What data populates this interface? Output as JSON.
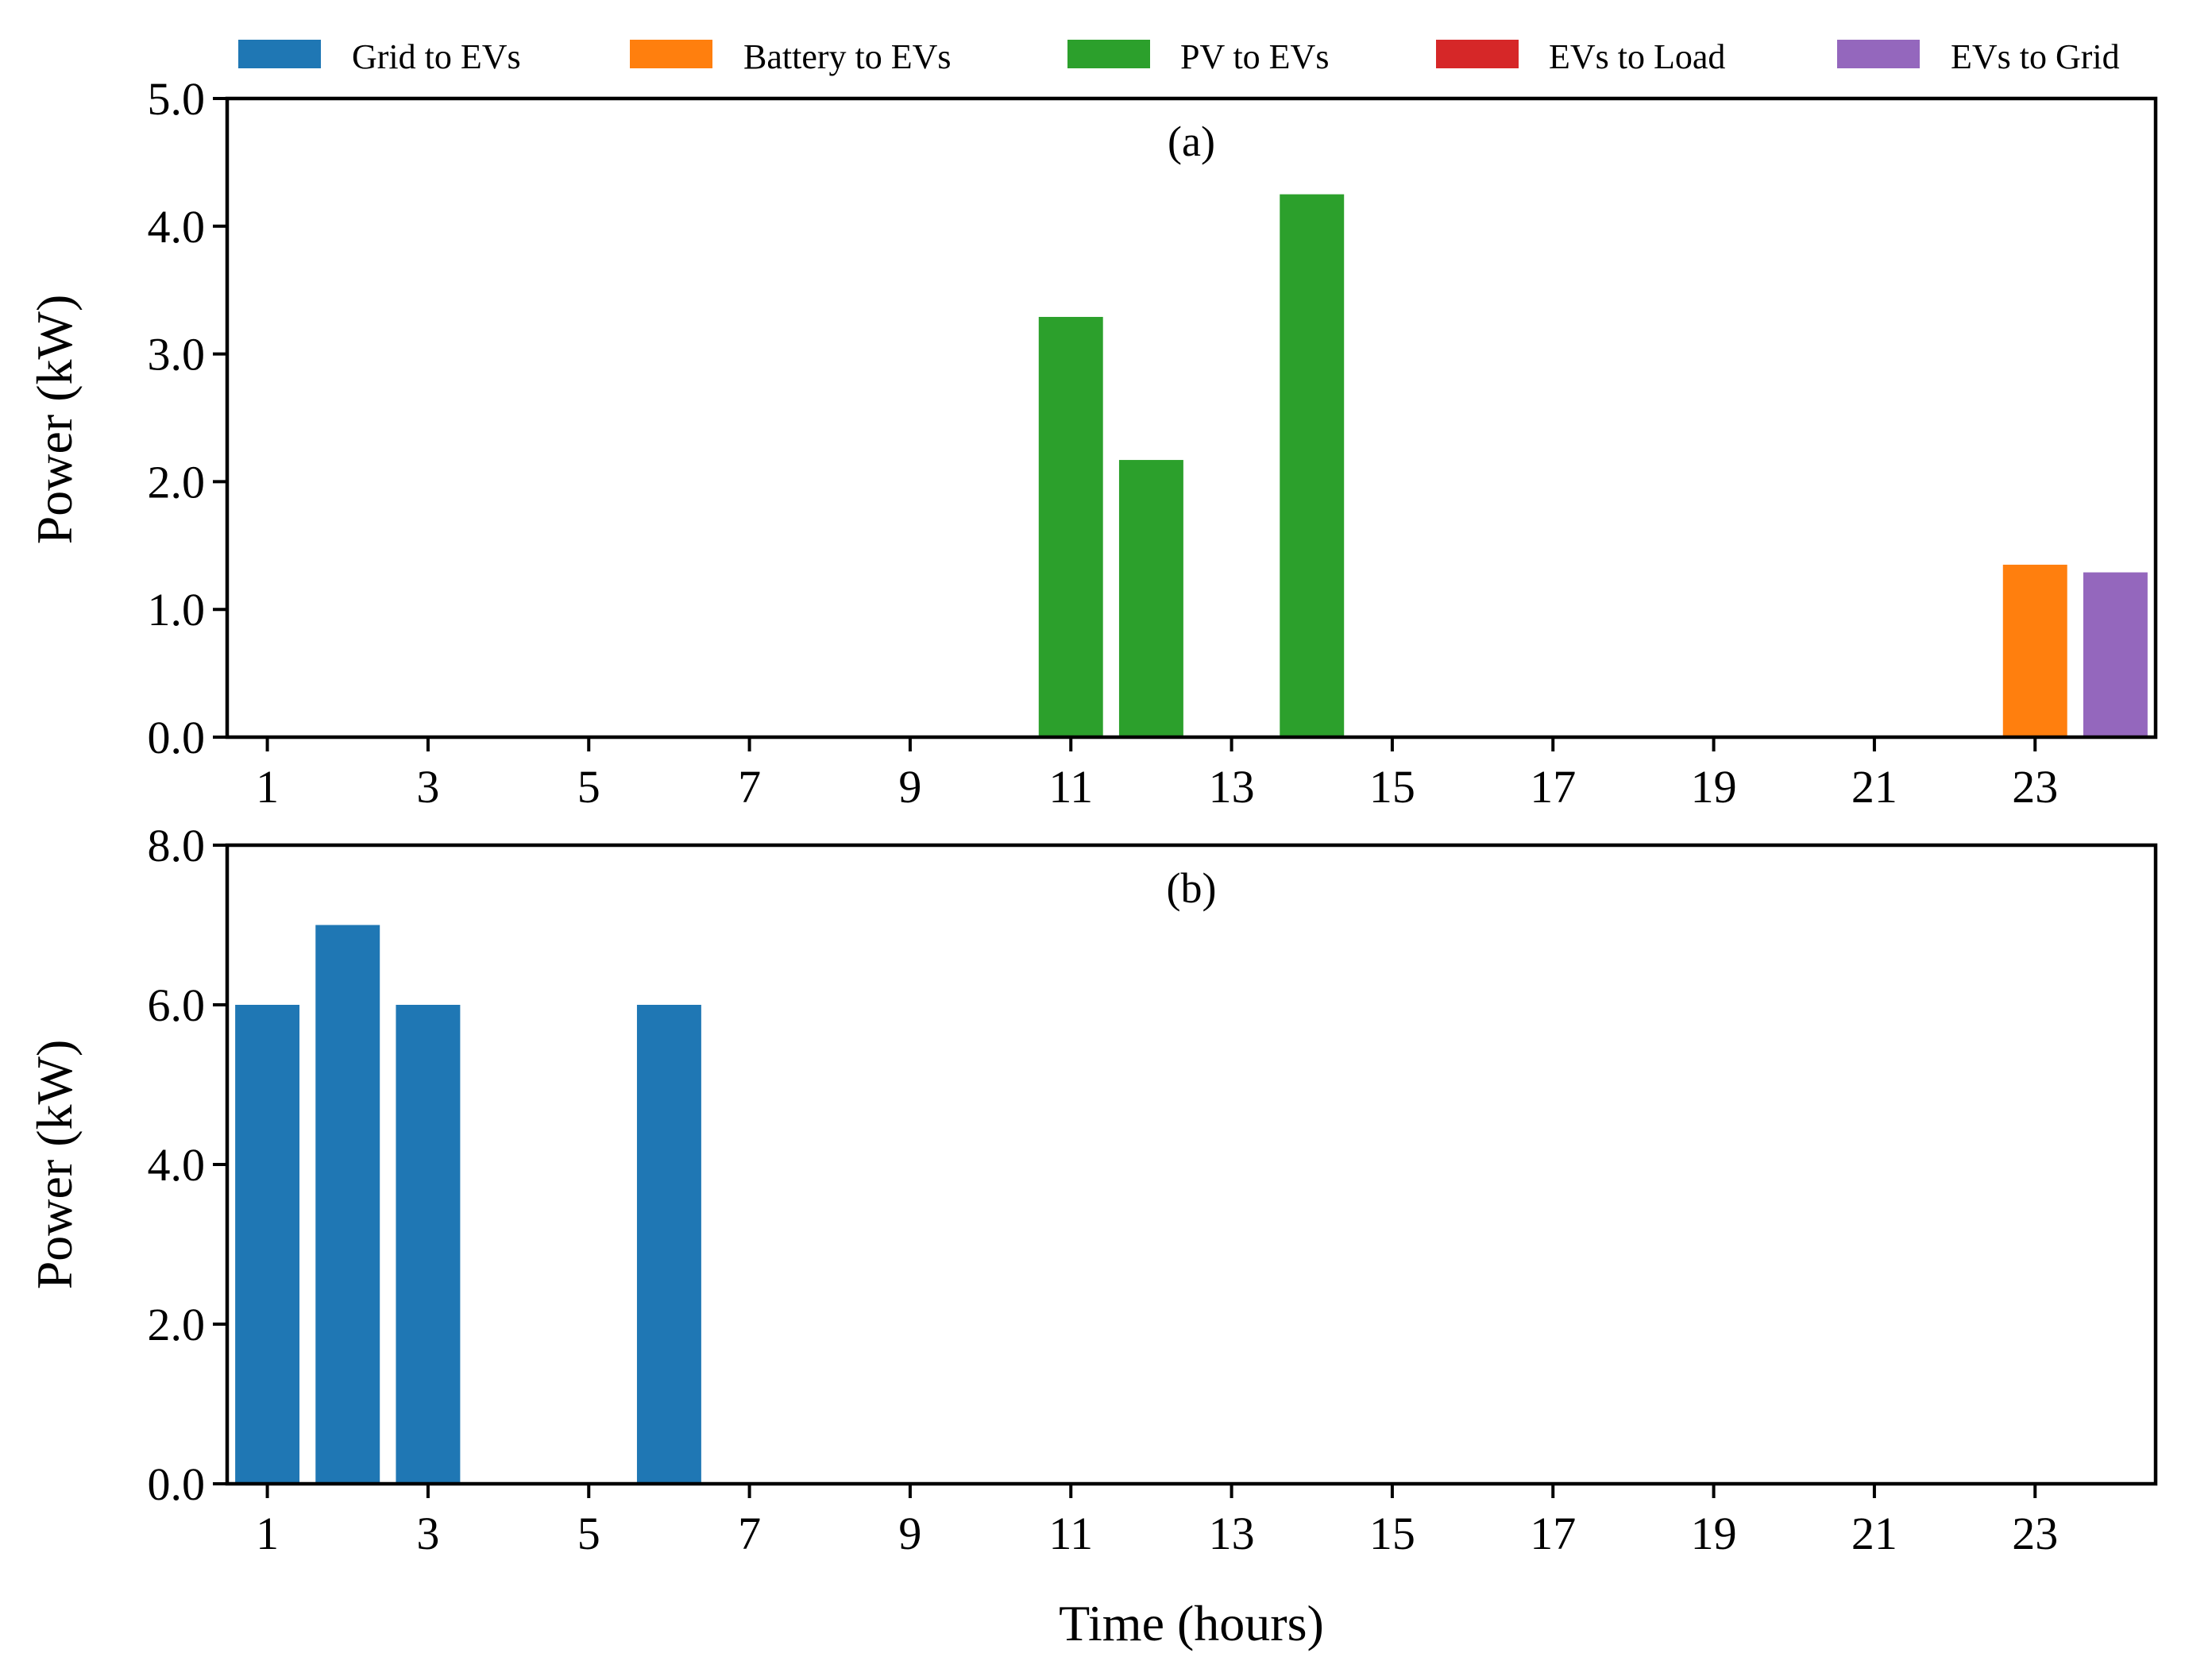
{
  "chart_data": [
    {
      "type": "bar",
      "panel": "(a)",
      "xlabel": "",
      "ylabel": "Power (kW)",
      "ylim": [
        0,
        5
      ],
      "yticks": [
        0,
        1,
        2,
        3,
        4,
        5
      ],
      "ytick_labels": [
        "0.0",
        "1.0",
        "2.0",
        "3.0",
        "4.0",
        "5.0"
      ],
      "xlim": [
        0.5,
        24.5
      ],
      "xticks": [
        1,
        3,
        5,
        7,
        9,
        11,
        13,
        15,
        17,
        19,
        21,
        23
      ],
      "xtick_labels": [
        "1",
        "3",
        "5",
        "7",
        "9",
        "11",
        "13",
        "15",
        "17",
        "19",
        "21",
        "23"
      ],
      "categories": [
        1,
        2,
        3,
        4,
        5,
        6,
        7,
        8,
        9,
        10,
        11,
        12,
        13,
        14,
        15,
        16,
        17,
        18,
        19,
        20,
        21,
        22,
        23,
        24
      ],
      "series": [
        {
          "name": "Grid to EVs",
          "color": "#1f77b4",
          "values": [
            0,
            0,
            0,
            0,
            0,
            0,
            0,
            0,
            0,
            0,
            0,
            0,
            0,
            0,
            0,
            0,
            0,
            0,
            0,
            0,
            0,
            0,
            0,
            0
          ]
        },
        {
          "name": "Battery to EVs",
          "color": "#ff7f0e",
          "values": [
            0,
            0,
            0,
            0,
            0,
            0,
            0,
            0,
            0,
            0,
            0,
            0,
            0,
            0,
            0,
            0,
            0,
            0,
            0,
            0,
            0,
            0,
            1.35,
            0
          ]
        },
        {
          "name": "PV to EVs",
          "color": "#2ca02c",
          "values": [
            0,
            0,
            0,
            0,
            0,
            0,
            0,
            0,
            0,
            0,
            3.29,
            2.17,
            0,
            4.25,
            0,
            0,
            0,
            0,
            0,
            0,
            0,
            0,
            0,
            0
          ]
        },
        {
          "name": "EVs to Load",
          "color": "#d62728",
          "values": [
            0,
            0,
            0,
            0,
            0,
            0,
            0,
            0,
            0,
            0,
            0,
            0,
            0,
            0,
            0,
            0,
            0,
            0,
            0,
            0,
            0,
            0,
            0,
            0
          ]
        },
        {
          "name": "EVs to Grid",
          "color": "#9467bd",
          "values": [
            0,
            0,
            0,
            0,
            0,
            0,
            0,
            0,
            0,
            0,
            0,
            0,
            0,
            0,
            0,
            0,
            0,
            0,
            0,
            0,
            0,
            0,
            0,
            1.29
          ]
        }
      ]
    },
    {
      "type": "bar",
      "panel": "(b)",
      "xlabel": "Time (hours)",
      "ylabel": "Power (kW)",
      "ylim": [
        0,
        8
      ],
      "yticks": [
        0,
        2,
        4,
        6,
        8
      ],
      "ytick_labels": [
        "0.0",
        "2.0",
        "4.0",
        "6.0",
        "8.0"
      ],
      "xlim": [
        0.5,
        24.5
      ],
      "xticks": [
        1,
        3,
        5,
        7,
        9,
        11,
        13,
        15,
        17,
        19,
        21,
        23
      ],
      "xtick_labels": [
        "1",
        "3",
        "5",
        "7",
        "9",
        "11",
        "13",
        "15",
        "17",
        "19",
        "21",
        "23"
      ],
      "categories": [
        1,
        2,
        3,
        4,
        5,
        6,
        7,
        8,
        9,
        10,
        11,
        12,
        13,
        14,
        15,
        16,
        17,
        18,
        19,
        20,
        21,
        22,
        23,
        24
      ],
      "series": [
        {
          "name": "Grid to EVs",
          "color": "#1f77b4",
          "values": [
            6,
            7,
            6,
            0,
            0,
            6,
            0,
            0,
            0,
            0,
            0,
            0,
            0,
            0,
            0,
            0,
            0,
            0,
            0,
            0,
            0,
            0,
            0,
            0
          ]
        },
        {
          "name": "Battery to EVs",
          "color": "#ff7f0e",
          "values": [
            0,
            0,
            0,
            0,
            0,
            0,
            0,
            0,
            0,
            0,
            0,
            0,
            0,
            0,
            0,
            0,
            0,
            0,
            0,
            0,
            0,
            0,
            0,
            0
          ]
        },
        {
          "name": "PV to EVs",
          "color": "#2ca02c",
          "values": [
            0,
            0,
            0,
            0,
            0,
            0,
            0,
            0,
            0,
            0,
            0,
            0,
            0,
            0,
            0,
            0,
            0,
            0,
            0,
            0,
            0,
            0,
            0,
            0
          ]
        },
        {
          "name": "EVs to Load",
          "color": "#d62728",
          "values": [
            0,
            0,
            0,
            0,
            0,
            0,
            0,
            0,
            0,
            0,
            0,
            0,
            0,
            0,
            0,
            0,
            0,
            0,
            0,
            0,
            0,
            0,
            0,
            0
          ]
        },
        {
          "name": "EVs to Grid",
          "color": "#9467bd",
          "values": [
            0,
            0,
            0,
            0,
            0,
            0,
            0,
            0,
            0,
            0,
            0,
            0,
            0,
            0,
            0,
            0,
            0,
            0,
            0,
            0,
            0,
            0,
            0,
            0
          ]
        }
      ]
    }
  ],
  "legend": {
    "placement": "top",
    "items": [
      {
        "label": "Grid to EVs",
        "color": "#1f77b4"
      },
      {
        "label": "Battery to EVs",
        "color": "#ff7f0e"
      },
      {
        "label": "PV to EVs",
        "color": "#2ca02c"
      },
      {
        "label": "EVs to Load",
        "color": "#d62728"
      },
      {
        "label": "EVs to Grid",
        "color": "#9467bd"
      }
    ]
  }
}
